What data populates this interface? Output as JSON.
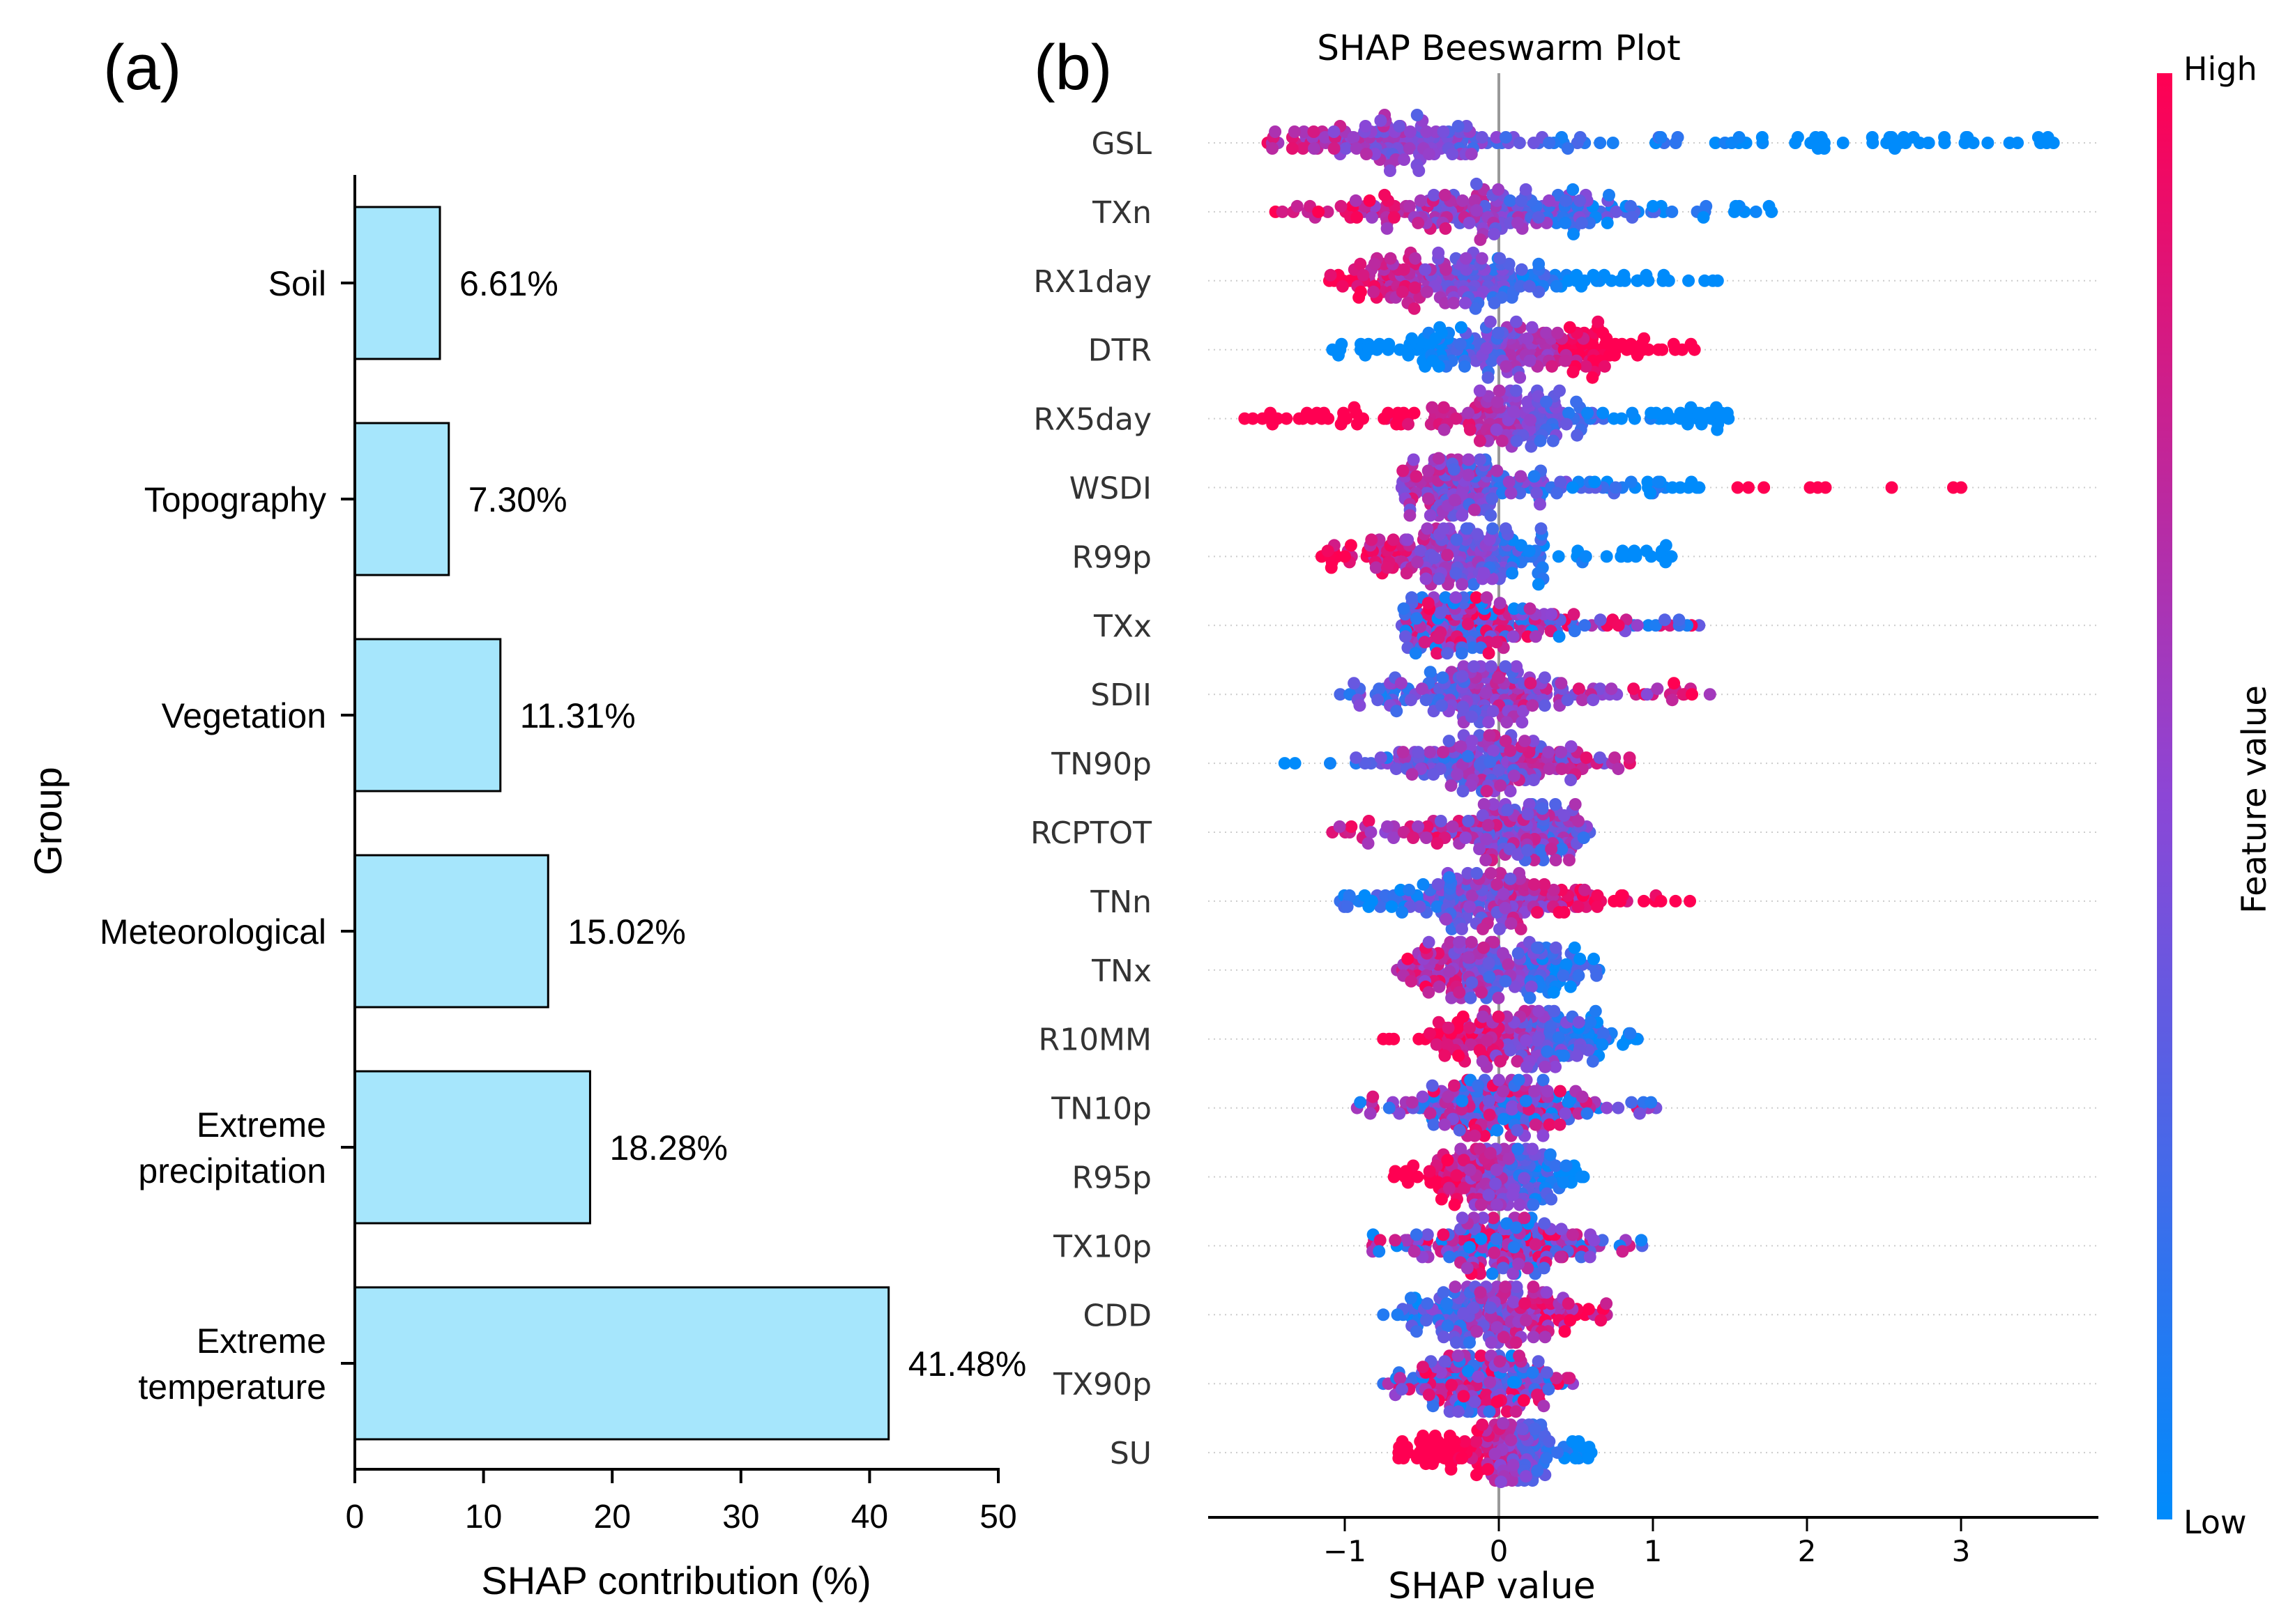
{
  "panel_a": {
    "panel_label": "(a)",
    "chart_data": {
      "type": "bar",
      "orientation": "horizontal",
      "categories": [
        "Soil",
        "Topography",
        "Vegetation",
        "Meteorological",
        "Extreme precipitation",
        "Extreme temperature"
      ],
      "category_lines": [
        [
          "Soil"
        ],
        [
          "Topography"
        ],
        [
          "Vegetation"
        ],
        [
          "Meteorological"
        ],
        [
          "Extreme",
          "precipitation"
        ],
        [
          "Extreme",
          "temperature"
        ]
      ],
      "values": [
        6.61,
        7.3,
        11.31,
        15.02,
        18.28,
        41.48
      ],
      "value_labels": [
        "6.61%",
        "7.30%",
        "11.31%",
        "15.02%",
        "18.28%",
        "41.48%"
      ],
      "xlabel": "SHAP contribution (%)",
      "ylabel": "Group",
      "xlim": [
        0,
        50
      ],
      "xticks": [
        "0",
        "10",
        "20",
        "30",
        "40",
        "50"
      ],
      "bar_color": "#a6e6fc"
    }
  },
  "panel_b": {
    "panel_label": "(b)",
    "chart_data": {
      "type": "scatter",
      "subtype": "beeswarm",
      "title": "SHAP Beeswarm Plot",
      "xlabel": "SHAP value",
      "xlim": [
        -1.75,
        4.0
      ],
      "xticks": [
        -1,
        0,
        1,
        2,
        3
      ],
      "xtick_labels": [
        "−1",
        "0",
        "1",
        "2",
        "3"
      ],
      "colorbar": {
        "label": "Feature value",
        "high": "High",
        "low": "Low",
        "colors": [
          "#ff0052",
          "#8c46d6",
          "#008bfb"
        ]
      },
      "features": [
        {
          "name": "GSL",
          "min": -1.5,
          "max": 3.6,
          "peak": -0.6,
          "sd": 0.35,
          "tail": 0.45,
          "trend": -1.0
        },
        {
          "name": "TXn",
          "min": -1.45,
          "max": 1.77,
          "peak": -0.1,
          "sd": 0.5,
          "tail": 0.3,
          "trend": -0.6
        },
        {
          "name": "RX1day",
          "min": -1.1,
          "max": 1.42,
          "peak": -0.3,
          "sd": 0.45,
          "tail": 0.25,
          "trend": -1.0
        },
        {
          "name": "DTR",
          "min": -1.08,
          "max": 1.27,
          "peak": 0.1,
          "sd": 0.5,
          "tail": 0.2,
          "trend": 1.0
        },
        {
          "name": "RX5day",
          "min": -1.65,
          "max": 1.49,
          "peak": 0.12,
          "sd": 0.22,
          "tail": 0.5,
          "trend": -1.0
        },
        {
          "name": "WSDI",
          "min": -0.63,
          "max": 1.3,
          "peak": -0.3,
          "sd": 0.22,
          "tail": 0.3,
          "trend": -0.5,
          "outliers": [
            1.55,
            1.62,
            1.72,
            2.02,
            2.07,
            2.12,
            2.55,
            2.95,
            3.0
          ]
        },
        {
          "name": "R99p",
          "min": -1.15,
          "max": 1.12,
          "peak": -0.3,
          "sd": 0.35,
          "tail": 0.25,
          "trend": -0.8
        },
        {
          "name": "TXx",
          "min": -0.63,
          "max": 1.3,
          "peak": -0.3,
          "sd": 0.3,
          "tail": 0.3,
          "trend": 0.0
        },
        {
          "name": "SDII",
          "min": -1.03,
          "max": 1.37,
          "peak": -0.1,
          "sd": 0.35,
          "tail": 0.25,
          "trend": 0.3
        },
        {
          "name": "TN90p",
          "min": -1.39,
          "max": 0.85,
          "peak": 0.0,
          "sd": 0.35,
          "tail": 0.15,
          "trend": 0.2
        },
        {
          "name": "RCPTOT",
          "min": -1.08,
          "max": 0.59,
          "peak": 0.2,
          "sd": 0.35,
          "tail": 0.15,
          "trend": -0.3
        },
        {
          "name": "TNn",
          "min": -1.03,
          "max": 1.24,
          "peak": -0.1,
          "sd": 0.35,
          "tail": 0.3,
          "trend": 0.6
        },
        {
          "name": "TNx",
          "min": -0.66,
          "max": 0.65,
          "peak": -0.1,
          "sd": 0.35,
          "tail": 0.15,
          "trend": -0.4
        },
        {
          "name": "R10MM",
          "min": -0.75,
          "max": 0.9,
          "peak": 0.2,
          "sd": 0.3,
          "tail": 0.15,
          "trend": -0.7
        },
        {
          "name": "TN10p",
          "min": -0.92,
          "max": 1.02,
          "peak": 0.0,
          "sd": 0.3,
          "tail": 0.2,
          "trend": 0.0
        },
        {
          "name": "R95p",
          "min": -0.68,
          "max": 0.55,
          "peak": 0.0,
          "sd": 0.25,
          "tail": 0.1,
          "trend": -0.7
        },
        {
          "name": "TX10p",
          "min": -0.82,
          "max": 0.93,
          "peak": 0.0,
          "sd": 0.3,
          "tail": 0.2,
          "trend": 0.0
        },
        {
          "name": "CDD",
          "min": -0.75,
          "max": 0.7,
          "peak": -0.05,
          "sd": 0.28,
          "tail": 0.15,
          "trend": 0.4
        },
        {
          "name": "TX90p",
          "min": -0.75,
          "max": 0.48,
          "peak": -0.1,
          "sd": 0.25,
          "tail": 0.15,
          "trend": 0.0
        },
        {
          "name": "SU",
          "min": -0.65,
          "max": 0.6,
          "peak": 0.12,
          "sd": 0.08,
          "tail": 0.6,
          "trend": -1.0
        }
      ]
    }
  }
}
